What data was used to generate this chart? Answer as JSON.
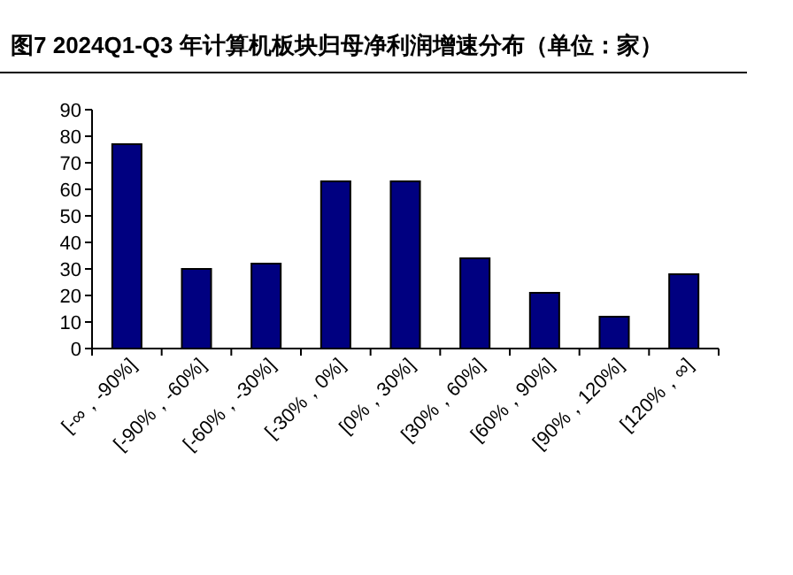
{
  "chart_data": {
    "type": "bar",
    "title": "图7  2024Q1-Q3 年计算机板块归母净利润增速分布（单位：家）",
    "categories": [
      "[-∞，-90%]",
      "[-90%，-60%]",
      "[-60%，-30%]",
      "[-30%，0%]",
      "[0%，30%]",
      "[30%，60%]",
      "[60%，90%]",
      "[90%，120%]",
      "[120%，∞]"
    ],
    "values": [
      77,
      30,
      32,
      63,
      63,
      34,
      21,
      12,
      28
    ],
    "color": "#000080",
    "ylim": [
      0,
      90
    ],
    "yticks": [
      0,
      10,
      20,
      30,
      40,
      50,
      60,
      70,
      80,
      90
    ]
  }
}
